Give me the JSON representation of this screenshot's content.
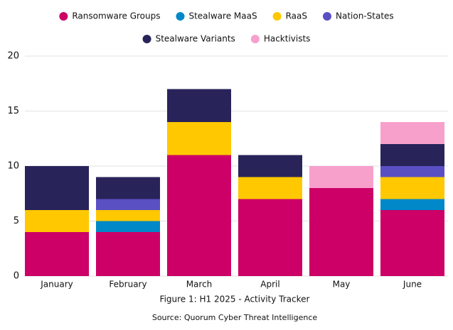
{
  "chart_data": {
    "type": "stacked-bar",
    "title": "Figure 1: H1 2025 - Activity Tracker",
    "source": "Source: Quorum Cyber Threat Intelligence",
    "categories": [
      "January",
      "February",
      "March",
      "April",
      "May",
      "June"
    ],
    "series": [
      {
        "name": "Ransomware Groups",
        "color": "#cc0066",
        "values": [
          4,
          4,
          11,
          7,
          8,
          6
        ]
      },
      {
        "name": "Stealware MaaS",
        "color": "#0088c8",
        "values": [
          0,
          1,
          0,
          0,
          0,
          1
        ]
      },
      {
        "name": "RaaS",
        "color": "#ffc800",
        "values": [
          2,
          1,
          3,
          2,
          0,
          2
        ]
      },
      {
        "name": "Nation-States",
        "color": "#5b4fc4",
        "values": [
          0,
          1,
          0,
          0,
          0,
          1
        ]
      },
      {
        "name": "Stealware Variants",
        "color": "#28245a",
        "values": [
          4,
          2,
          3,
          2,
          0,
          2
        ]
      },
      {
        "name": "Hacktivists",
        "color": "#f7a0cc",
        "values": [
          0,
          0,
          0,
          0,
          2,
          2
        ]
      }
    ],
    "ylim": [
      0,
      20
    ],
    "yticks": [
      0,
      5,
      10,
      15,
      20
    ],
    "grid": true,
    "legend": "top"
  }
}
